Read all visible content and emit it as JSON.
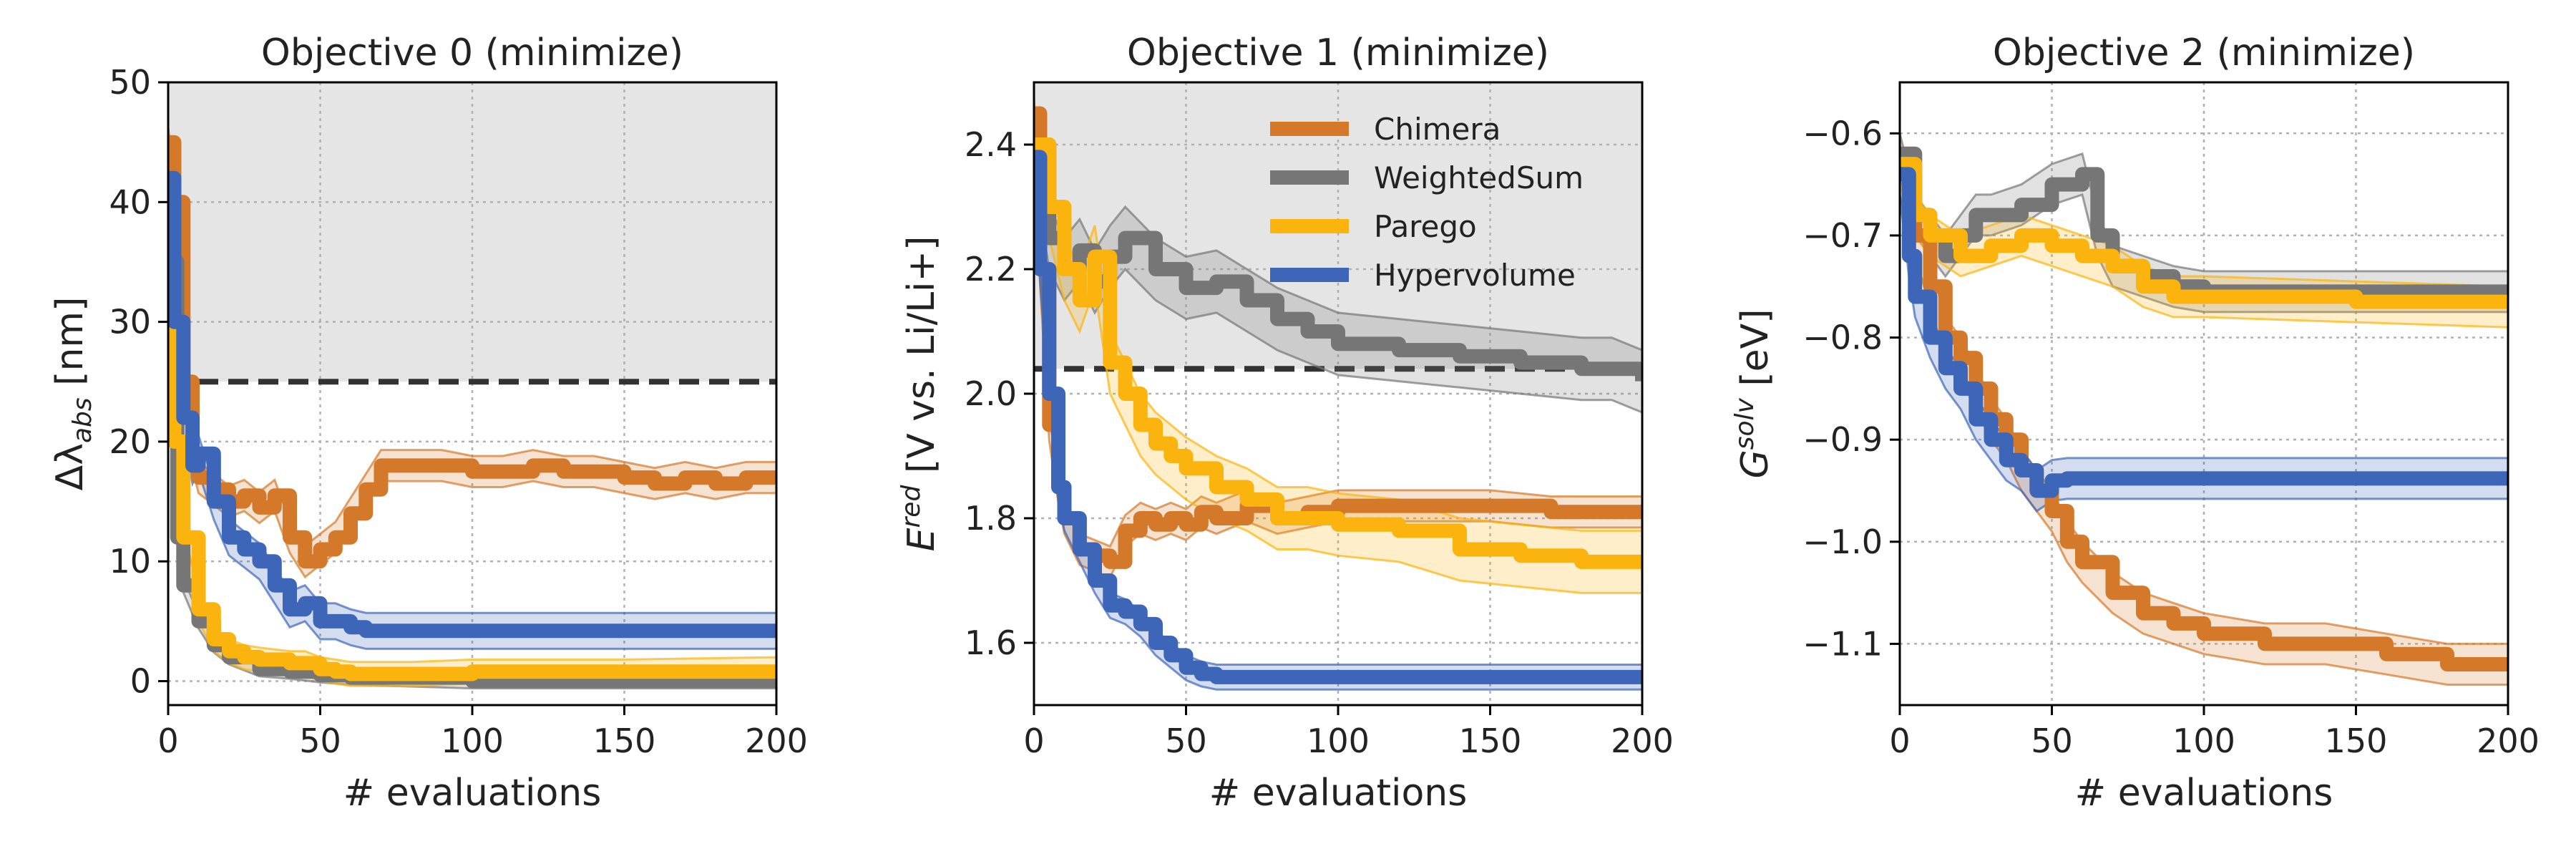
{
  "series_styles": [
    {
      "name": "Chimera",
      "color": "#d4792a"
    },
    {
      "name": "WeightedSum",
      "color": "#767676"
    },
    {
      "name": "Parego",
      "color": "#fbb30d"
    },
    {
      "name": "Hypervolume",
      "color": "#3d66b8"
    }
  ],
  "chart_data": [
    {
      "type": "line",
      "title": "Objective 0 (minimize)",
      "xlabel": "# evaluations",
      "ylabel_main": "Δλ",
      "ylabel_sub": "abs",
      "ylabel_tail": " [nm]",
      "xlim": [
        0,
        200
      ],
      "ylim": [
        -2,
        50
      ],
      "xticks": [
        0,
        50,
        100,
        150,
        200
      ],
      "yticks": [
        0,
        10,
        20,
        30,
        40,
        50
      ],
      "ytick_labels": [
        "0",
        "10",
        "20",
        "30",
        "40",
        "50"
      ],
      "threshold": 25,
      "shade_above_threshold": true,
      "grid": true,
      "series": [
        {
          "name": "Chimera",
          "band": 1.3,
          "points": [
            [
              0,
              45
            ],
            [
              2,
              40
            ],
            [
              5,
              25
            ],
            [
              8,
              19
            ],
            [
              10,
              17
            ],
            [
              15,
              16
            ],
            [
              20,
              15
            ],
            [
              25,
              15.5
            ],
            [
              30,
              14.5
            ],
            [
              35,
              15.5
            ],
            [
              40,
              12
            ],
            [
              45,
              10
            ],
            [
              50,
              11
            ],
            [
              55,
              12
            ],
            [
              60,
              14
            ],
            [
              65,
              16
            ],
            [
              70,
              18
            ],
            [
              80,
              18
            ],
            [
              90,
              18
            ],
            [
              100,
              17.5
            ],
            [
              110,
              17.5
            ],
            [
              120,
              18
            ],
            [
              130,
              17.5
            ],
            [
              140,
              17.5
            ],
            [
              150,
              17
            ],
            [
              160,
              16.5
            ],
            [
              170,
              17
            ],
            [
              180,
              16.5
            ],
            [
              190,
              17
            ],
            [
              200,
              17
            ]
          ]
        },
        {
          "name": "WeightedSum",
          "band": 0.6,
          "points": [
            [
              0,
              35
            ],
            [
              3,
              12
            ],
            [
              5,
              8
            ],
            [
              10,
              5
            ],
            [
              15,
              3
            ],
            [
              20,
              2
            ],
            [
              30,
              1
            ],
            [
              40,
              0.8
            ],
            [
              50,
              0.5
            ],
            [
              60,
              0.3
            ],
            [
              100,
              0
            ],
            [
              150,
              0
            ],
            [
              200,
              0
            ]
          ]
        },
        {
          "name": "Parego",
          "band": 1.0,
          "points": [
            [
              0,
              40
            ],
            [
              2,
              20
            ],
            [
              5,
              12
            ],
            [
              10,
              6
            ],
            [
              15,
              3.5
            ],
            [
              20,
              2.5
            ],
            [
              25,
              2
            ],
            [
              30,
              1.8
            ],
            [
              40,
              1.5
            ],
            [
              45,
              1.5
            ],
            [
              50,
              1
            ],
            [
              55,
              0.8
            ],
            [
              60,
              0.6
            ],
            [
              80,
              0.6
            ],
            [
              100,
              0.8
            ],
            [
              150,
              0.8
            ],
            [
              200,
              1
            ]
          ]
        },
        {
          "name": "Hypervolume",
          "band": 1.5,
          "points": [
            [
              0,
              42
            ],
            [
              2,
              30
            ],
            [
              5,
              22
            ],
            [
              8,
              18
            ],
            [
              10,
              19
            ],
            [
              15,
              15
            ],
            [
              20,
              12
            ],
            [
              25,
              11
            ],
            [
              30,
              10
            ],
            [
              35,
              8
            ],
            [
              40,
              6
            ],
            [
              45,
              6.5
            ],
            [
              50,
              5
            ],
            [
              55,
              5
            ],
            [
              60,
              4.5
            ],
            [
              65,
              4.2
            ],
            [
              100,
              4.2
            ],
            [
              150,
              4.2
            ],
            [
              200,
              4.2
            ]
          ]
        }
      ]
    },
    {
      "type": "line",
      "title": "Objective 1 (minimize)",
      "xlabel": "# evaluations",
      "ylabel_main": "E",
      "ylabel_sup": "red",
      "ylabel_tail": "  [V vs. Li/Li+]",
      "xlim": [
        0,
        200
      ],
      "ylim": [
        1.5,
        2.5
      ],
      "xticks": [
        0,
        50,
        100,
        150,
        200
      ],
      "yticks": [
        1.6,
        1.8,
        2.0,
        2.2,
        2.4
      ],
      "ytick_labels": [
        "1.6",
        "1.8",
        "2.0",
        "2.2",
        "2.4"
      ],
      "threshold": 2.04,
      "shade_above_threshold": true,
      "grid": true,
      "legend_position": "top-right",
      "series": [
        {
          "name": "Chimera",
          "band": 0.025,
          "points": [
            [
              0,
              2.45
            ],
            [
              2,
              2.2
            ],
            [
              5,
              1.95
            ],
            [
              8,
              1.85
            ],
            [
              10,
              1.8
            ],
            [
              15,
              1.75
            ],
            [
              20,
              1.74
            ],
            [
              25,
              1.73
            ],
            [
              30,
              1.78
            ],
            [
              35,
              1.8
            ],
            [
              40,
              1.79
            ],
            [
              45,
              1.8
            ],
            [
              50,
              1.79
            ],
            [
              55,
              1.81
            ],
            [
              60,
              1.8
            ],
            [
              70,
              1.82
            ],
            [
              80,
              1.8
            ],
            [
              90,
              1.81
            ],
            [
              100,
              1.82
            ],
            [
              120,
              1.82
            ],
            [
              150,
              1.82
            ],
            [
              170,
              1.81
            ],
            [
              200,
              1.81
            ]
          ]
        },
        {
          "name": "WeightedSum",
          "band": 0.05,
          "points": [
            [
              0,
              2.4
            ],
            [
              5,
              2.25
            ],
            [
              10,
              2.2
            ],
            [
              15,
              2.23
            ],
            [
              20,
              2.18
            ],
            [
              25,
              2.22
            ],
            [
              30,
              2.25
            ],
            [
              40,
              2.2
            ],
            [
              50,
              2.17
            ],
            [
              60,
              2.18
            ],
            [
              70,
              2.15
            ],
            [
              80,
              2.12
            ],
            [
              90,
              2.1
            ],
            [
              100,
              2.08
            ],
            [
              120,
              2.07
            ],
            [
              140,
              2.06
            ],
            [
              160,
              2.05
            ],
            [
              180,
              2.04
            ],
            [
              190,
              2.04
            ],
            [
              200,
              2.02
            ]
          ]
        },
        {
          "name": "Parego",
          "band": 0.05,
          "points": [
            [
              0,
              2.4
            ],
            [
              5,
              2.3
            ],
            [
              10,
              2.2
            ],
            [
              15,
              2.15
            ],
            [
              20,
              2.22
            ],
            [
              25,
              2.05
            ],
            [
              30,
              2.0
            ],
            [
              35,
              1.95
            ],
            [
              40,
              1.92
            ],
            [
              45,
              1.9
            ],
            [
              50,
              1.88
            ],
            [
              60,
              1.85
            ],
            [
              70,
              1.83
            ],
            [
              80,
              1.8
            ],
            [
              90,
              1.8
            ],
            [
              100,
              1.79
            ],
            [
              120,
              1.78
            ],
            [
              140,
              1.75
            ],
            [
              160,
              1.74
            ],
            [
              180,
              1.73
            ],
            [
              200,
              1.73
            ]
          ]
        },
        {
          "name": "Hypervolume",
          "band": 0.02,
          "points": [
            [
              0,
              2.38
            ],
            [
              2,
              2.2
            ],
            [
              5,
              2.0
            ],
            [
              8,
              1.85
            ],
            [
              10,
              1.8
            ],
            [
              15,
              1.75
            ],
            [
              20,
              1.7
            ],
            [
              25,
              1.66
            ],
            [
              30,
              1.65
            ],
            [
              35,
              1.63
            ],
            [
              40,
              1.6
            ],
            [
              45,
              1.58
            ],
            [
              50,
              1.56
            ],
            [
              55,
              1.55
            ],
            [
              60,
              1.545
            ],
            [
              100,
              1.545
            ],
            [
              150,
              1.545
            ],
            [
              200,
              1.545
            ]
          ]
        }
      ]
    },
    {
      "type": "line",
      "title": "Objective 2 (minimize)",
      "xlabel": "# evaluations",
      "ylabel_main": "G",
      "ylabel_sup": "solv",
      "ylabel_tail": " [eV]",
      "xlim": [
        0,
        200
      ],
      "ylim": [
        -1.16,
        -0.55
      ],
      "xticks": [
        0,
        50,
        100,
        150,
        200
      ],
      "yticks": [
        -1.1,
        -1.0,
        -0.9,
        -0.8,
        -0.7,
        -0.6
      ],
      "ytick_labels": [
        "−1.1",
        "−1.0",
        "−0.9",
        "−0.8",
        "−0.7",
        "−0.6"
      ],
      "grid": true,
      "series": [
        {
          "name": "Chimera",
          "band": 0.02,
          "points": [
            [
              0,
              -0.64
            ],
            [
              5,
              -0.7
            ],
            [
              10,
              -0.75
            ],
            [
              15,
              -0.8
            ],
            [
              20,
              -0.82
            ],
            [
              25,
              -0.85
            ],
            [
              30,
              -0.88
            ],
            [
              35,
              -0.9
            ],
            [
              40,
              -0.93
            ],
            [
              45,
              -0.95
            ],
            [
              50,
              -0.97
            ],
            [
              55,
              -1.0
            ],
            [
              60,
              -1.02
            ],
            [
              70,
              -1.05
            ],
            [
              80,
              -1.07
            ],
            [
              90,
              -1.08
            ],
            [
              100,
              -1.09
            ],
            [
              120,
              -1.1
            ],
            [
              140,
              -1.1
            ],
            [
              160,
              -1.11
            ],
            [
              180,
              -1.12
            ],
            [
              200,
              -1.12
            ]
          ]
        },
        {
          "name": "WeightedSum",
          "band": 0.02,
          "points": [
            [
              0,
              -0.62
            ],
            [
              5,
              -0.68
            ],
            [
              10,
              -0.7
            ],
            [
              15,
              -0.72
            ],
            [
              20,
              -0.7
            ],
            [
              25,
              -0.68
            ],
            [
              30,
              -0.68
            ],
            [
              40,
              -0.67
            ],
            [
              50,
              -0.65
            ],
            [
              60,
              -0.64
            ],
            [
              65,
              -0.7
            ],
            [
              70,
              -0.73
            ],
            [
              80,
              -0.74
            ],
            [
              90,
              -0.75
            ],
            [
              100,
              -0.755
            ],
            [
              150,
              -0.755
            ],
            [
              200,
              -0.755
            ]
          ]
        },
        {
          "name": "Parego",
          "band": 0.02,
          "points": [
            [
              0,
              -0.63
            ],
            [
              5,
              -0.68
            ],
            [
              10,
              -0.7
            ],
            [
              20,
              -0.72
            ],
            [
              30,
              -0.71
            ],
            [
              40,
              -0.7
            ],
            [
              50,
              -0.71
            ],
            [
              60,
              -0.72
            ],
            [
              70,
              -0.73
            ],
            [
              80,
              -0.75
            ],
            [
              90,
              -0.76
            ],
            [
              100,
              -0.76
            ],
            [
              150,
              -0.765
            ],
            [
              200,
              -0.77
            ]
          ]
        },
        {
          "name": "Hypervolume",
          "band": 0.02,
          "points": [
            [
              0,
              -0.64
            ],
            [
              3,
              -0.72
            ],
            [
              5,
              -0.76
            ],
            [
              10,
              -0.8
            ],
            [
              15,
              -0.83
            ],
            [
              20,
              -0.85
            ],
            [
              25,
              -0.88
            ],
            [
              30,
              -0.9
            ],
            [
              35,
              -0.92
            ],
            [
              40,
              -0.93
            ],
            [
              45,
              -0.95
            ],
            [
              50,
              -0.94
            ],
            [
              55,
              -0.938
            ],
            [
              200,
              -0.938
            ]
          ]
        }
      ]
    }
  ]
}
